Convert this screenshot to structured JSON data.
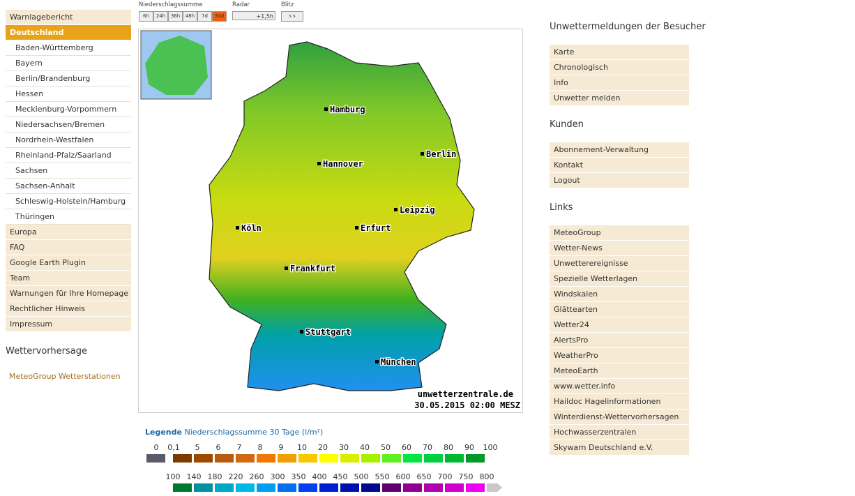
{
  "nav": {
    "items": [
      "Warnlagebericht",
      "Deutschland",
      "Baden-Württemberg",
      "Bayern",
      "Berlin/Brandenburg",
      "Hessen",
      "Mecklenburg-Vorpommern",
      "Niedersachsen/Bremen",
      "Nordrhein-Westfalen",
      "Rheinland-Pfalz/Saarland",
      "Sachsen",
      "Sachsen-Anhalt",
      "Schleswig-Holstein/Hamburg",
      "Thüringen",
      "Europa",
      "FAQ",
      "Google Earth Plugin",
      "Team",
      "Warnungen für Ihre Homepage",
      "Rechtlicher Hinweis",
      "Impressum"
    ],
    "forecast_title": "Wettervorhersage",
    "forecast_link": "MeteoGroup Wetterstationen"
  },
  "controls": {
    "precip_label": "Niederschlagssumme",
    "precip_buttons": [
      "6h",
      "24h",
      "36h",
      "48h",
      "7d",
      "30d"
    ],
    "radar_label": "Radar",
    "radar_button": "+1,5h",
    "lightning_label": "Blitz"
  },
  "map": {
    "cities": [
      "Hamburg",
      "Berlin",
      "Hannover",
      "Leipzig",
      "Köln",
      "Erfurt",
      "Frankfurt",
      "Stuttgart",
      "München"
    ],
    "source": "unwetterzentrale.de",
    "timestamp": "30.05.2015 02:00 MESZ"
  },
  "legend": {
    "title": "Legende",
    "subtitle": "Niederschlagssumme 30 Tage  (l/m²)",
    "row1_labels": [
      "0",
      "0,1",
      "5",
      "6",
      "7",
      "8",
      "9",
      "10",
      "20",
      "30",
      "40",
      "50",
      "60",
      "70",
      "80",
      "90",
      "100"
    ],
    "row1_colors": [
      "#5a5a6a",
      "#7a3a00",
      "#a04800",
      "#b85a10",
      "#d06a10",
      "#f07800",
      "#f0a000",
      "#f8c800",
      "#ffff00",
      "#d8f000",
      "#a8f000",
      "#60f020",
      "#00e840",
      "#00d040",
      "#00b830",
      "#009828"
    ],
    "row2_labels": [
      "100",
      "140",
      "180",
      "220",
      "260",
      "300",
      "350",
      "400",
      "450",
      "500",
      "550",
      "600",
      "650",
      "700",
      "750",
      "800"
    ],
    "row2_colors": [
      "#007830",
      "#0090a0",
      "#00a8c8",
      "#00b8e8",
      "#00a0f0",
      "#0070f0",
      "#0040f0",
      "#0020d0",
      "#0010b0",
      "#000890",
      "#600070",
      "#900090",
      "#b000b0",
      "#d000d0",
      "#f000f0",
      "#c8c8c8"
    ]
  },
  "sidebar": {
    "sections": [
      {
        "title": "Unwettermeldungen der Besucher",
        "items": [
          "Karte",
          "Chronologisch",
          "Info",
          "Unwetter melden"
        ]
      },
      {
        "title": "Kunden",
        "items": [
          "Abonnement-Verwaltung",
          "Kontakt",
          "Logout"
        ]
      },
      {
        "title": "Links",
        "items": [
          "MeteoGroup",
          "Wetter-News",
          "Unwetterereignisse",
          "Spezielle Wetterlagen",
          "Windskalen",
          "Glättearten",
          "Wetter24",
          "AlertsPro",
          "WeatherPro",
          "MeteoEarth",
          "www.wetter.info",
          "Haildoc Hagelinformationen",
          "Winterdienst-Wettervorhersagen",
          "Hochwasserzentralen",
          "Skywarn Deutschland e.V."
        ]
      }
    ]
  }
}
